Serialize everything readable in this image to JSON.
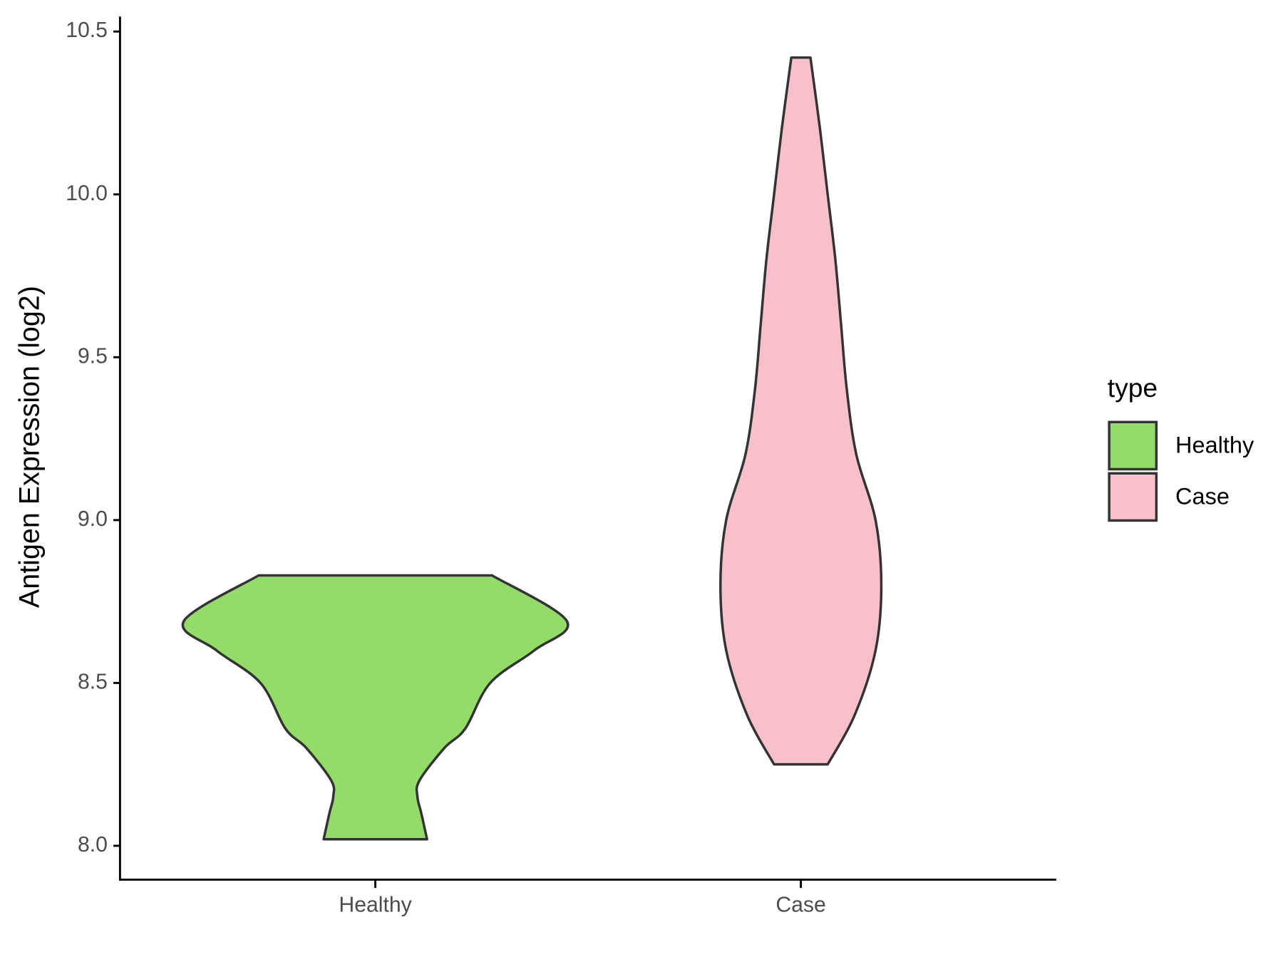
{
  "chart_data": {
    "type": "violin",
    "y_label": "Antigen Expression (log2)",
    "categories": [
      "Healthy",
      "Case"
    ],
    "series": [
      {
        "name": "Healthy",
        "color": "#93dc6a",
        "y": [
          8.02,
          8.1,
          8.15,
          8.2,
          8.3,
          8.36,
          8.5,
          8.6,
          8.69,
          8.83
        ],
        "width": [
          0.27,
          0.24,
          0.22,
          0.23,
          0.36,
          0.47,
          0.6,
          0.83,
          1.0,
          0.61
        ]
      },
      {
        "name": "Case",
        "color": "#f8c0cb",
        "y": [
          8.25,
          8.4,
          8.6,
          8.8,
          9.0,
          9.2,
          9.4,
          9.6,
          9.8,
          10.0,
          10.2,
          10.42
        ],
        "width": [
          0.14,
          0.28,
          0.39,
          0.42,
          0.39,
          0.29,
          0.24,
          0.21,
          0.18,
          0.14,
          0.1,
          0.05
        ]
      }
    ],
    "ylim": [
      7.896,
      10.546
    ],
    "yticks": [
      {
        "value": 8,
        "label": "8.0"
      },
      8.5,
      {
        "value": 9,
        "label": "9.0"
      },
      9.5,
      {
        "value": 10,
        "label": "10.0"
      },
      10.5
    ],
    "legend_title": "type",
    "legend": "right"
  }
}
